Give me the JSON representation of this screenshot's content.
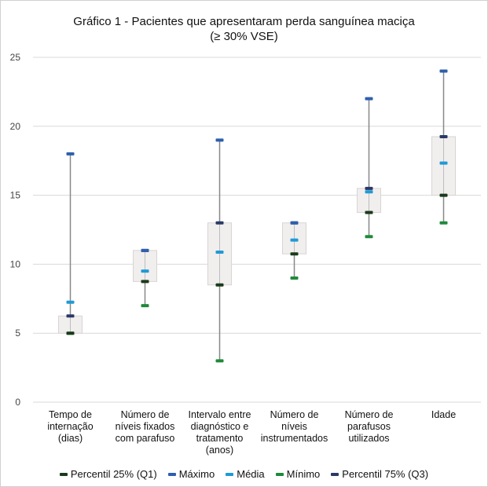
{
  "chart_data": {
    "type": "box",
    "title": "Gráfico 1 - Pacientes que apresentaram perda sanguínea maciça",
    "subtitle": "(≥ 30% VSE)",
    "ylim": [
      0,
      25
    ],
    "yticks": [
      0,
      5,
      10,
      15,
      20,
      25
    ],
    "grid": true,
    "legend_position": "bottom",
    "categories": [
      "Tempo de\ninternação\n(dias)",
      "Número de\nníveis fixados\ncom parafuso",
      "Intervalo entre\ndiagnóstico e\ntratamento\n(anos)",
      "Número de\nníveis\ninstrumentados",
      "Número de\nparafusos\nutilizados",
      "Idade"
    ],
    "series": [
      {
        "name": "Percentil 25% (Q1)",
        "color": "#1b3a1b",
        "values": [
          5,
          8.75,
          8.5,
          10.75,
          13.75,
          15
        ]
      },
      {
        "name": "Máximo",
        "color": "#2f5fad",
        "values": [
          18,
          11,
          19,
          13,
          22,
          24
        ]
      },
      {
        "name": "Média",
        "color": "#1e9ad6",
        "values": [
          7.25,
          9.5,
          10.875,
          11.75,
          15.25,
          17.33
        ]
      },
      {
        "name": "Mínimo",
        "color": "#1f8a3a",
        "values": [
          5,
          7,
          3,
          9,
          12,
          13
        ]
      },
      {
        "name": "Percentil 75% (Q3)",
        "color": "#2a3a66",
        "values": [
          6.25,
          11,
          13,
          13,
          15.5,
          19.25
        ]
      }
    ],
    "box_fill": "#f1eeee",
    "box_stroke": "#d9d4d4",
    "whisker_color": "#888888"
  }
}
